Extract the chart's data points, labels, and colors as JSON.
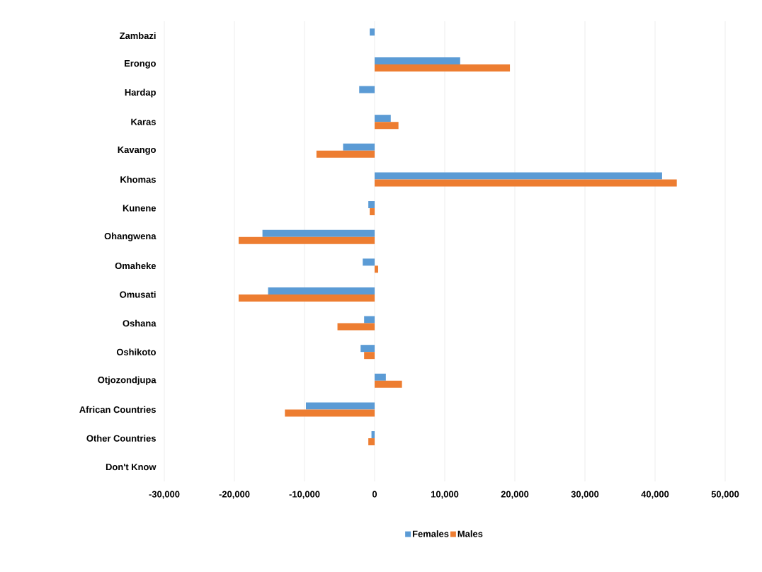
{
  "chart_data": {
    "type": "bar",
    "orientation": "horizontal",
    "categories": [
      "Zambazi",
      "Erongo",
      "Hardap",
      "Karas",
      "Kavango",
      "Khomas",
      "Kunene",
      "Ohangwena",
      "Omaheke",
      "Omusati",
      "Oshana",
      "Oshikoto",
      "Otjozondjupa",
      "African Countries",
      "Other Countries",
      "Don't Know"
    ],
    "series": [
      {
        "name": "Females",
        "color": "#5b9bd5",
        "values": [
          -700,
          12200,
          -2200,
          2300,
          -4500,
          41000,
          -900,
          -16000,
          -1700,
          -15200,
          -1500,
          -2000,
          1600,
          -9800,
          -450,
          0
        ]
      },
      {
        "name": "Males",
        "color": "#ed7d31",
        "values": [
          0,
          19300,
          0,
          3400,
          -8300,
          43100,
          -700,
          -19400,
          500,
          -19400,
          -5300,
          -1500,
          3900,
          -12800,
          -900,
          0
        ]
      }
    ],
    "xlim": [
      -30000,
      50000
    ],
    "xticks": [
      {
        "value": -30000,
        "label": "-30,000"
      },
      {
        "value": -20000,
        "label": "-20,000"
      },
      {
        "value": -10000,
        "label": "-10,000"
      },
      0,
      {
        "value": 10000,
        "label": "10,000"
      },
      {
        "value": 20000,
        "label": "20,000"
      },
      {
        "value": 30000,
        "label": "30,000"
      },
      {
        "value": 40000,
        "label": "40,000"
      },
      {
        "value": 50000,
        "label": "50,000"
      }
    ],
    "grid": "x",
    "legend": "bottom"
  }
}
